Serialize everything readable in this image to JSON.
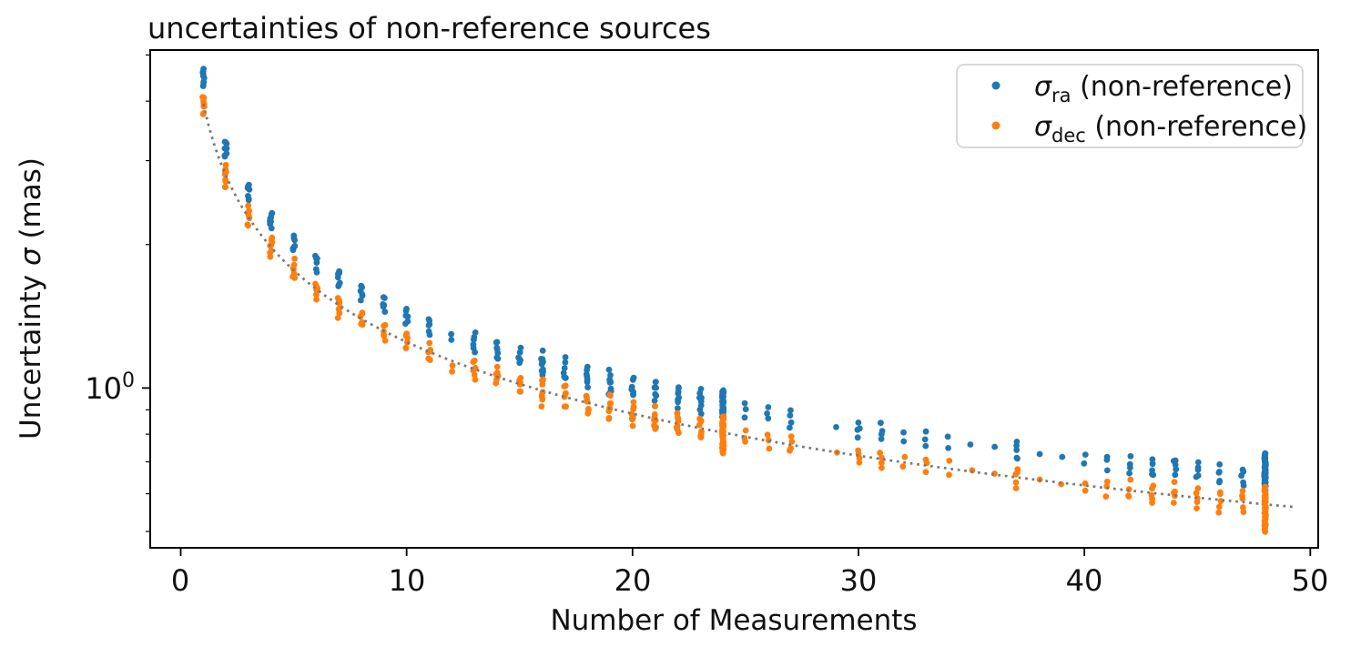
{
  "chart_data": {
    "type": "scatter",
    "title": "uncertainties of non-reference sources",
    "xlabel": "Number of Measurements",
    "ylabel": "Uncertainty σ (mas)",
    "ylabel_parts": {
      "pre": "Uncertainty ",
      "sigma": "σ",
      "post": " (mas)"
    },
    "x_axis": {
      "min": -1.35,
      "max": 50.35,
      "ticks": [
        0,
        10,
        20,
        30,
        40,
        50
      ],
      "tick_labels": [
        "0",
        "10",
        "20",
        "30",
        "40",
        "50"
      ]
    },
    "y_axis": {
      "scale": "log",
      "unit": "mas",
      "min": 0.462,
      "max": 5.12,
      "major_ticks": [
        1
      ],
      "major_tick_label": {
        "base": "10",
        "exponent": "0"
      },
      "minor_ticks": [
        0.5,
        0.6,
        0.7,
        0.8,
        0.9,
        2,
        3,
        4,
        5
      ]
    },
    "trend_line": {
      "style": "dotted",
      "color": "#777777",
      "formula": "sigma = 3.95 / sqrt(n)",
      "coefficient": 3.95,
      "exponent": -0.5,
      "n_start": 1,
      "n_end": 49.4
    },
    "series": [
      {
        "name": "σra (non-reference)",
        "color": "#1f77b4",
        "clusters": [
          {
            "n": 1,
            "sigma": 4.49,
            "count": 10,
            "spread": 0.045
          },
          {
            "n": 2,
            "sigma": 3.18,
            "count": 9,
            "spread": 0.049
          },
          {
            "n": 3,
            "sigma": 2.59,
            "count": 7,
            "spread": 0.044
          },
          {
            "n": 4,
            "sigma": 2.25,
            "count": 8,
            "spread": 0.044
          },
          {
            "n": 5,
            "sigma": 2.01,
            "count": 7,
            "spread": 0.044
          },
          {
            "n": 6,
            "sigma": 1.83,
            "count": 6,
            "spread": 0.04
          },
          {
            "n": 7,
            "sigma": 1.7,
            "count": 8,
            "spread": 0.044
          },
          {
            "n": 8,
            "sigma": 1.59,
            "count": 6,
            "spread": 0.035
          },
          {
            "n": 9,
            "sigma": 1.5,
            "count": 6,
            "spread": 0.04
          },
          {
            "n": 10,
            "sigma": 1.42,
            "count": 6,
            "spread": 0.035
          },
          {
            "n": 11,
            "sigma": 1.35,
            "count": 6,
            "spread": 0.04
          },
          {
            "n": 12,
            "sigma": 1.28,
            "count": 2,
            "spread": 0.012
          },
          {
            "n": 13,
            "sigma": 1.25,
            "count": 6,
            "spread": 0.04
          },
          {
            "n": 14,
            "sigma": 1.2,
            "count": 7,
            "spread": 0.044
          },
          {
            "n": 15,
            "sigma": 1.16,
            "count": 6,
            "spread": 0.04
          },
          {
            "n": 16,
            "sigma": 1.12,
            "count": 10,
            "spread": 0.063
          },
          {
            "n": 17,
            "sigma": 1.09,
            "count": 7,
            "spread": 0.054
          },
          {
            "n": 18,
            "sigma": 1.06,
            "count": 7,
            "spread": 0.044
          },
          {
            "n": 19,
            "sigma": 1.03,
            "count": 9,
            "spread": 0.058
          },
          {
            "n": 20,
            "sigma": 1.0,
            "count": 8,
            "spread": 0.049
          },
          {
            "n": 21,
            "sigma": 0.98,
            "count": 8,
            "spread": 0.049
          },
          {
            "n": 22,
            "sigma": 0.96,
            "count": 8,
            "spread": 0.049
          },
          {
            "n": 23,
            "sigma": 0.94,
            "count": 8,
            "spread": 0.054
          },
          {
            "n": 24,
            "sigma": 0.92,
            "count": 40,
            "min": 0.86,
            "max": 0.99
          },
          {
            "n": 25,
            "sigma": 0.9,
            "count": 3,
            "spread": 0.031
          },
          {
            "n": 26,
            "sigma": 0.88,
            "count": 3,
            "spread": 0.027
          },
          {
            "n": 27,
            "sigma": 0.86,
            "count": 4,
            "spread": 0.035
          },
          {
            "n": 29,
            "sigma": 0.83,
            "count": 1,
            "spread": 0.013
          },
          {
            "n": 30,
            "sigma": 0.82,
            "count": 4,
            "spread": 0.04
          },
          {
            "n": 31,
            "sigma": 0.81,
            "count": 4,
            "spread": 0.035
          },
          {
            "n": 32,
            "sigma": 0.79,
            "count": 2,
            "spread": 0.018
          },
          {
            "n": 33,
            "sigma": 0.78,
            "count": 3,
            "spread": 0.031
          },
          {
            "n": 34,
            "sigma": 0.77,
            "count": 2,
            "spread": 0.027
          },
          {
            "n": 35,
            "sigma": 0.76,
            "count": 1,
            "spread": 0.013
          },
          {
            "n": 36,
            "sigma": 0.75,
            "count": 1,
            "spread": 0.013
          },
          {
            "n": 37,
            "sigma": 0.74,
            "count": 5,
            "spread": 0.044
          },
          {
            "n": 38,
            "sigma": 0.73,
            "count": 1,
            "spread": 0.013
          },
          {
            "n": 39,
            "sigma": 0.72,
            "count": 1,
            "spread": 0.013
          },
          {
            "n": 40,
            "sigma": 0.71,
            "count": 2,
            "spread": 0.018
          },
          {
            "n": 41,
            "sigma": 0.7,
            "count": 3,
            "spread": 0.035
          },
          {
            "n": 42,
            "sigma": 0.69,
            "count": 4,
            "spread": 0.04
          },
          {
            "n": 43,
            "sigma": 0.68,
            "count": 5,
            "spread": 0.04
          },
          {
            "n": 44,
            "sigma": 0.68,
            "count": 5,
            "spread": 0.044
          },
          {
            "n": 45,
            "sigma": 0.67,
            "count": 5,
            "spread": 0.044
          },
          {
            "n": 46,
            "sigma": 0.66,
            "count": 5,
            "spread": 0.044
          },
          {
            "n": 47,
            "sigma": 0.65,
            "count": 5,
            "spread": 0.044
          },
          {
            "n": 48,
            "sigma": 0.65,
            "count": 48,
            "min": 0.62,
            "max": 0.73
          }
        ]
      },
      {
        "name": "σdec (non-reference)",
        "color": "#ff7f0e",
        "clusters": [
          {
            "n": 1,
            "sigma": 3.95,
            "count": 10,
            "spread": 0.045
          },
          {
            "n": 2,
            "sigma": 2.79,
            "count": 9,
            "spread": 0.049
          },
          {
            "n": 3,
            "sigma": 2.28,
            "count": 7,
            "spread": 0.044
          },
          {
            "n": 4,
            "sigma": 1.98,
            "count": 8,
            "spread": 0.044
          },
          {
            "n": 5,
            "sigma": 1.77,
            "count": 7,
            "spread": 0.044
          },
          {
            "n": 6,
            "sigma": 1.61,
            "count": 6,
            "spread": 0.04
          },
          {
            "n": 7,
            "sigma": 1.49,
            "count": 8,
            "spread": 0.044
          },
          {
            "n": 8,
            "sigma": 1.4,
            "count": 6,
            "spread": 0.035
          },
          {
            "n": 9,
            "sigma": 1.32,
            "count": 6,
            "spread": 0.04
          },
          {
            "n": 10,
            "sigma": 1.25,
            "count": 6,
            "spread": 0.035
          },
          {
            "n": 11,
            "sigma": 1.19,
            "count": 6,
            "spread": 0.04
          },
          {
            "n": 12,
            "sigma": 1.1,
            "count": 2,
            "spread": 0.012
          },
          {
            "n": 13,
            "sigma": 1.1,
            "count": 6,
            "spread": 0.04
          },
          {
            "n": 14,
            "sigma": 1.06,
            "count": 7,
            "spread": 0.044
          },
          {
            "n": 15,
            "sigma": 1.02,
            "count": 6,
            "spread": 0.04
          },
          {
            "n": 16,
            "sigma": 0.99,
            "count": 10,
            "spread": 0.063
          },
          {
            "n": 17,
            "sigma": 0.96,
            "count": 7,
            "spread": 0.054
          },
          {
            "n": 18,
            "sigma": 0.93,
            "count": 7,
            "spread": 0.044
          },
          {
            "n": 19,
            "sigma": 0.91,
            "count": 9,
            "spread": 0.058
          },
          {
            "n": 20,
            "sigma": 0.88,
            "count": 8,
            "spread": 0.049
          },
          {
            "n": 21,
            "sigma": 0.86,
            "count": 8,
            "spread": 0.049
          },
          {
            "n": 22,
            "sigma": 0.84,
            "count": 8,
            "spread": 0.049
          },
          {
            "n": 23,
            "sigma": 0.82,
            "count": 8,
            "spread": 0.054
          },
          {
            "n": 24,
            "sigma": 0.81,
            "count": 40,
            "min": 0.73,
            "max": 0.87
          },
          {
            "n": 25,
            "sigma": 0.79,
            "count": 3,
            "spread": 0.031
          },
          {
            "n": 26,
            "sigma": 0.77,
            "count": 3,
            "spread": 0.027
          },
          {
            "n": 27,
            "sigma": 0.76,
            "count": 4,
            "spread": 0.035
          },
          {
            "n": 29,
            "sigma": 0.73,
            "count": 1,
            "spread": 0.013
          },
          {
            "n": 30,
            "sigma": 0.72,
            "count": 4,
            "spread": 0.04
          },
          {
            "n": 31,
            "sigma": 0.71,
            "count": 4,
            "spread": 0.035
          },
          {
            "n": 32,
            "sigma": 0.7,
            "count": 2,
            "spread": 0.018
          },
          {
            "n": 33,
            "sigma": 0.69,
            "count": 3,
            "spread": 0.031
          },
          {
            "n": 34,
            "sigma": 0.68,
            "count": 2,
            "spread": 0.027
          },
          {
            "n": 35,
            "sigma": 0.67,
            "count": 1,
            "spread": 0.013
          },
          {
            "n": 36,
            "sigma": 0.66,
            "count": 1,
            "spread": 0.013
          },
          {
            "n": 37,
            "sigma": 0.65,
            "count": 5,
            "spread": 0.044
          },
          {
            "n": 38,
            "sigma": 0.64,
            "count": 1,
            "spread": 0.013
          },
          {
            "n": 39,
            "sigma": 0.63,
            "count": 1,
            "spread": 0.013
          },
          {
            "n": 40,
            "sigma": 0.62,
            "count": 2,
            "spread": 0.018
          },
          {
            "n": 41,
            "sigma": 0.62,
            "count": 3,
            "spread": 0.035
          },
          {
            "n": 42,
            "sigma": 0.61,
            "count": 4,
            "spread": 0.04
          },
          {
            "n": 43,
            "sigma": 0.6,
            "count": 5,
            "spread": 0.04
          },
          {
            "n": 44,
            "sigma": 0.6,
            "count": 5,
            "spread": 0.044
          },
          {
            "n": 45,
            "sigma": 0.59,
            "count": 5,
            "spread": 0.044
          },
          {
            "n": 46,
            "sigma": 0.58,
            "count": 5,
            "spread": 0.044
          },
          {
            "n": 47,
            "sigma": 0.58,
            "count": 5,
            "spread": 0.044
          },
          {
            "n": 48,
            "sigma": 0.57,
            "count": 48,
            "min": 0.5,
            "max": 0.62
          }
        ]
      }
    ]
  },
  "legend": {
    "entries": [
      {
        "series": "ra",
        "color": "#1f77b4",
        "symbol": "σ",
        "subscript": "ra",
        "text": " (non-reference)"
      },
      {
        "series": "dec",
        "color": "#ff7f0e",
        "symbol": "σ",
        "subscript": "dec",
        "text": " (non-reference)"
      }
    ]
  },
  "colors": {
    "ra": "#1f77b4",
    "dec": "#ff7f0e",
    "trend": "#777777",
    "axis": "#000000",
    "legend_border": "#cccccc"
  }
}
